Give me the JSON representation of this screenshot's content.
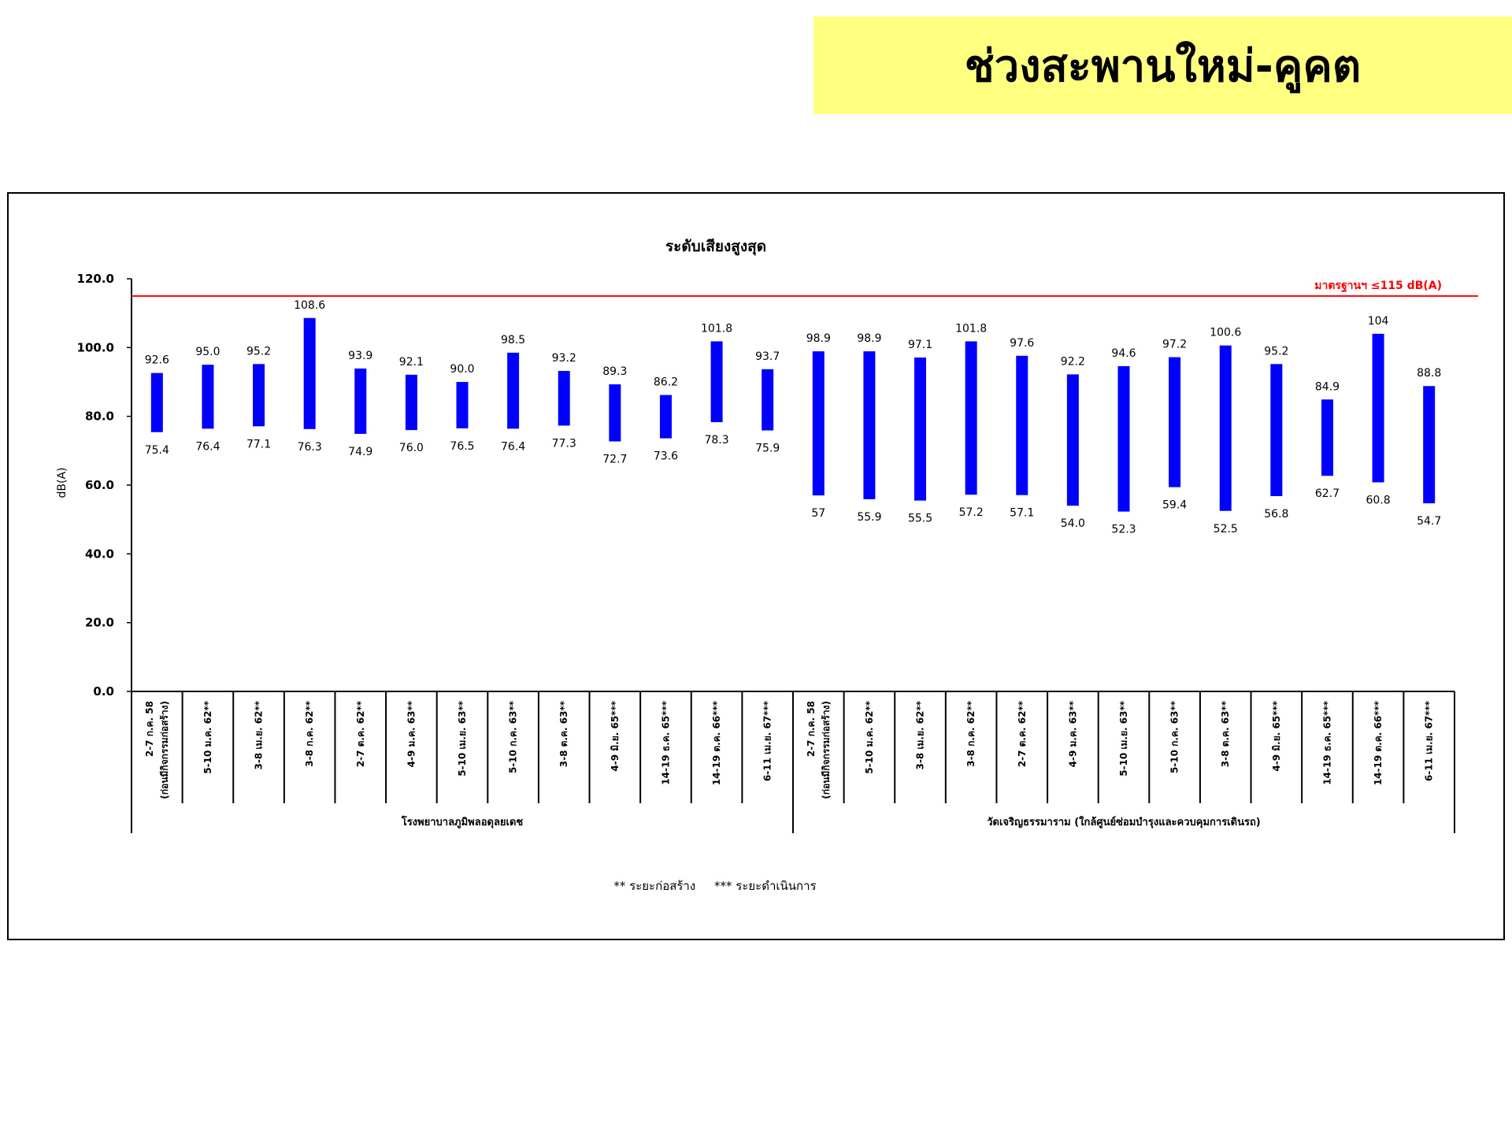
{
  "header": {
    "title": "ช่วงสะพานใหม่-คูคต"
  },
  "colors": {
    "banner": "#ffff80",
    "bar": "#0000ff",
    "standard_line": "#ff0000"
  },
  "chart_data": {
    "type": "bar",
    "subtype": "floating range (min–max)",
    "title": "ระดับเสียงสูงสุด",
    "ylabel": "dB(A)",
    "ylim": [
      0,
      120
    ],
    "yticks": [
      "0.0",
      "20.0",
      "40.0",
      "60.0",
      "80.0",
      "100.0",
      "120.0"
    ],
    "standard": {
      "value": 115,
      "label": "มาตรฐานฯ ≤115 dB(A)"
    },
    "groups": [
      {
        "name": "โรงพยาบาลภูมิพลอดุลยเดช",
        "categories": [
          [
            "2-7 ก.ค. 58",
            "(ก่อนมีกิจกรรมก่อสร้าง)"
          ],
          [
            "5-10 ม.ค. 62**"
          ],
          [
            "3-8 เม.ย. 62**"
          ],
          [
            "3-8 ก.ค. 62**"
          ],
          [
            "2-7 ต.ค. 62**"
          ],
          [
            "4-9 ม.ค. 63**"
          ],
          [
            "5-10 เม.ย. 63**"
          ],
          [
            "5-10 ก.ค. 63**"
          ],
          [
            "3-8 ต.ค. 63**"
          ],
          [
            "4-9 มิ.ย. 65***"
          ],
          [
            "14-19 ธ.ค. 65***"
          ],
          [
            "14-19 ต.ค. 66***"
          ],
          [
            "6-11 เม.ย. 67***"
          ]
        ],
        "max": [
          "92.6",
          "95.0",
          "95.2",
          "108.6",
          "93.9",
          "92.1",
          "90.0",
          "98.5",
          "93.2",
          "89.3",
          "86.2",
          "101.8",
          "93.7"
        ],
        "min": [
          "75.4",
          "76.4",
          "77.1",
          "76.3",
          "74.9",
          "76.0",
          "76.5",
          "76.4",
          "77.3",
          "72.7",
          "73.6",
          "78.3",
          "75.9"
        ]
      },
      {
        "name": "วัดเจริญธรรมาราม (ใกล้ศูนย์ซ่อมบำรุงและควบคุมการเดินรถ)",
        "categories": [
          [
            "2-7 ก.ค. 58",
            "(ก่อนมีกิจกรรมก่อสร้าง)"
          ],
          [
            "5-10 ม.ค. 62**"
          ],
          [
            "3-8 เม.ย. 62**"
          ],
          [
            "3-8 ก.ค. 62**"
          ],
          [
            "2-7 ต.ค. 62**"
          ],
          [
            "4-9 ม.ค. 63**"
          ],
          [
            "5-10 เม.ย. 63**"
          ],
          [
            "5-10 ก.ค. 63**"
          ],
          [
            "3-8 ต.ค. 63**"
          ],
          [
            "4-9 มิ.ย. 65***"
          ],
          [
            "14-19 ธ.ค. 65***"
          ],
          [
            "14-19 ต.ค. 66***"
          ],
          [
            "6-11 เม.ย. 67***"
          ]
        ],
        "max": [
          "98.9",
          "98.9",
          "97.1",
          "101.8",
          "97.6",
          "92.2",
          "94.6",
          "97.2",
          "100.6",
          "95.2",
          "84.9",
          "104",
          "88.8"
        ],
        "min": [
          "57",
          "55.9",
          "55.5",
          "57.2",
          "57.1",
          "54.0",
          "52.3",
          "59.4",
          "52.5",
          "56.8",
          "62.7",
          "60.8",
          "54.7"
        ]
      }
    ],
    "footnote": "** ระยะก่อสร้าง     *** ระยะดำเนินการ",
    "grid": false,
    "legend": "none"
  }
}
